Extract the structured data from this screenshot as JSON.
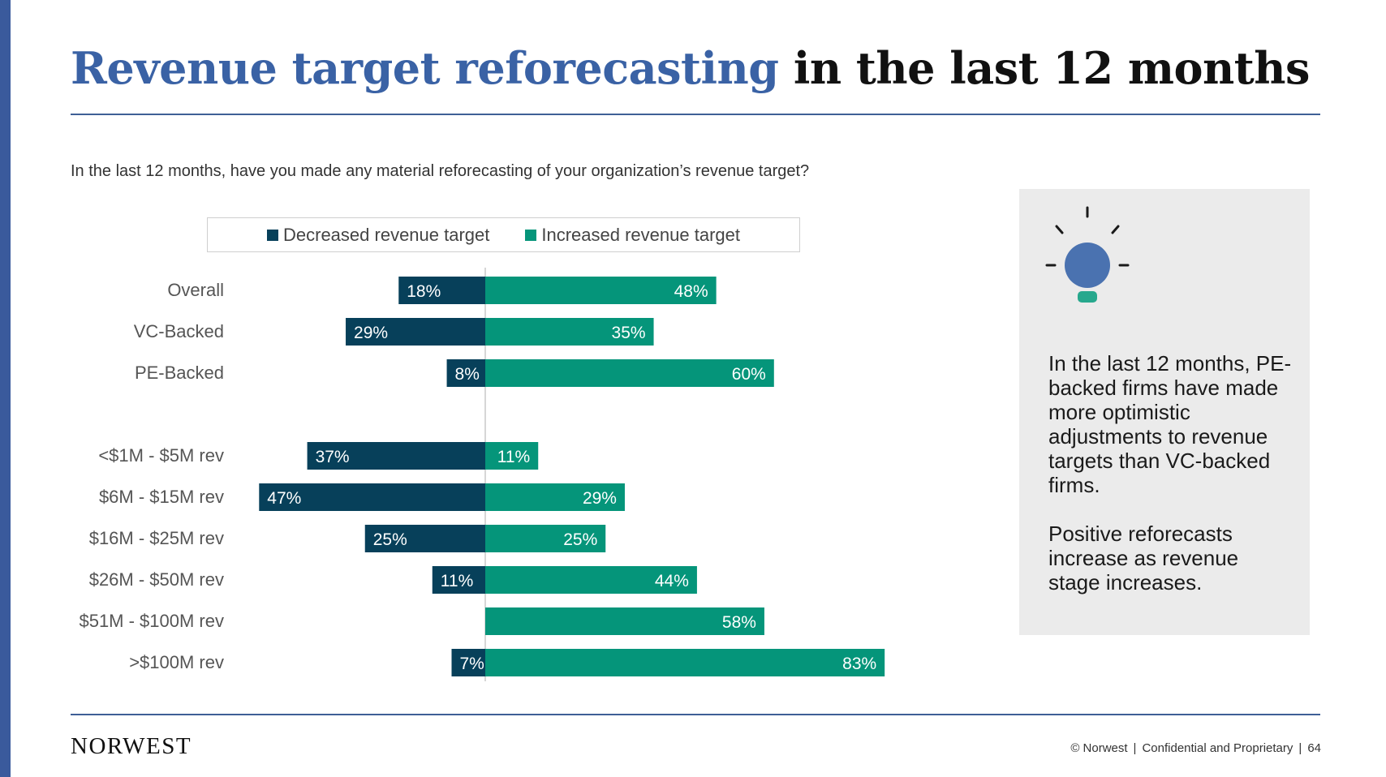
{
  "slide": {
    "title_part1": "Revenue target reforecasting",
    "title_part2": "in the last 12 months",
    "question": "In the last 12 months, have you made any material reforecasting of your organization’s revenue target?",
    "callout_p1": "In the last 12 months, PE-backed firms have made more optimistic adjustments to revenue targets than VC-backed firms.",
    "callout_p2": "Positive reforecasts increase as revenue stage increases.",
    "logo": "NORWEST",
    "footer_copyright": "© Norwest",
    "footer_confidential": "Confidential and Proprietary",
    "footer_page": "64",
    "footer_separator": "|"
  },
  "colors": {
    "decreased": "#07405a",
    "increased": "#05957a",
    "title_blue": "#3a62a5",
    "sidebar": "#3a5a9c",
    "callout_bg": "#ebebeb",
    "bulb": "#4a72b0",
    "bulb_base": "#27a88d"
  },
  "chart_data": {
    "type": "bar",
    "orientation": "horizontal-diverging",
    "legend_position": "top-center",
    "grid": false,
    "categories": [
      "Overall",
      "VC-Backed",
      "PE-Backed",
      "<$1M - $5M rev",
      "$6M - $15M rev",
      "$16M - $25M rev",
      "$26M - $50M rev",
      "$51M - $100M rev",
      ">$100M rev"
    ],
    "group_break_after_index": 2,
    "series": [
      {
        "name": "Decreased revenue target",
        "direction": "left",
        "values": [
          18,
          29,
          8,
          37,
          47,
          25,
          11,
          0,
          7
        ],
        "labels": [
          "18%",
          "29%",
          "8%",
          "37%",
          "47%",
          "25%",
          "11%",
          "",
          "7%"
        ]
      },
      {
        "name": "Increased revenue target",
        "direction": "right",
        "values": [
          48,
          35,
          60,
          11,
          29,
          25,
          44,
          58,
          83
        ],
        "labels": [
          "48%",
          "35%",
          "60%",
          "11%",
          "29%",
          "25%",
          "44%",
          "58%",
          "83%"
        ]
      }
    ],
    "unit": "%"
  }
}
